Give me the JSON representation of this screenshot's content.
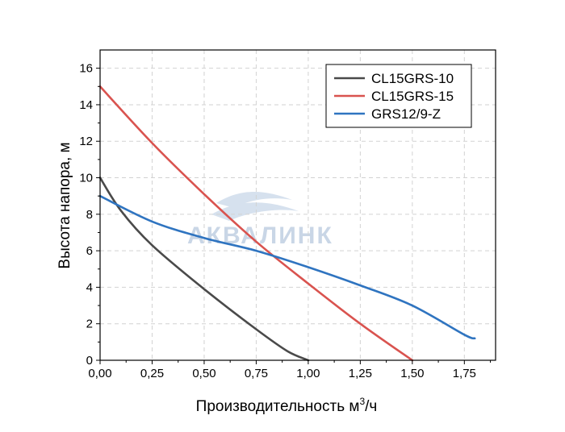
{
  "chart_data": {
    "type": "line",
    "xlabel": "Производительность м",
    "xlabel_sup": "3",
    "xlabel_suffix": "/ч",
    "ylabel": "Высота напора, м",
    "xlim": [
      0,
      1.9
    ],
    "ylim": [
      0,
      17
    ],
    "x_ticks": [
      0,
      0.25,
      0.5,
      0.75,
      1.0,
      1.25,
      1.5,
      1.75
    ],
    "x_tick_labels": [
      "0,00",
      "0,25",
      "0,50",
      "0,75",
      "1,00",
      "1,25",
      "1,50",
      "1,75"
    ],
    "y_ticks": [
      0,
      2,
      4,
      6,
      8,
      10,
      12,
      14,
      16
    ],
    "y_tick_labels": [
      "0",
      "2",
      "4",
      "6",
      "8",
      "10",
      "12",
      "14",
      "16"
    ],
    "grid": true,
    "legend_position": "top-right",
    "watermark": "АКВАЛИНК",
    "series": [
      {
        "name": "CL15GRS-10",
        "color": "#4a4a4a",
        "points": [
          [
            0,
            10.0
          ],
          [
            0.1,
            8.2
          ],
          [
            0.25,
            6.3
          ],
          [
            0.5,
            3.9
          ],
          [
            0.75,
            1.7
          ],
          [
            0.9,
            0.5
          ],
          [
            1.0,
            0.0
          ]
        ]
      },
      {
        "name": "CL15GRS-15",
        "color": "#d9534f",
        "points": [
          [
            0,
            15.0
          ],
          [
            0.25,
            11.9
          ],
          [
            0.5,
            9.1
          ],
          [
            0.75,
            6.5
          ],
          [
            1.0,
            4.2
          ],
          [
            1.25,
            2.0
          ],
          [
            1.5,
            0.0
          ]
        ]
      },
      {
        "name": "GRS12/9-Z",
        "color": "#2f74c0",
        "points": [
          [
            0,
            9.0
          ],
          [
            0.25,
            7.6
          ],
          [
            0.5,
            6.7
          ],
          [
            0.75,
            6.0
          ],
          [
            1.0,
            5.1
          ],
          [
            1.25,
            4.1
          ],
          [
            1.5,
            3.0
          ],
          [
            1.75,
            1.4
          ],
          [
            1.8,
            1.2
          ]
        ]
      }
    ]
  }
}
